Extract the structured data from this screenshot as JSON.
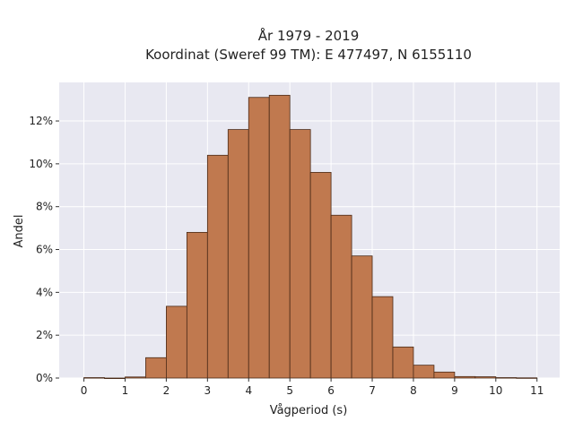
{
  "chart_data": {
    "type": "bar",
    "title": "År 1979 - 2019",
    "subtitle": "Koordinat (Sweref 99 TM): E 477497, N 6155110",
    "xlabel": "Vågperiod (s)",
    "ylabel": "Andel",
    "bin_width": 0.5,
    "bin_starts": [
      0,
      0.5,
      1,
      1.5,
      2,
      2.5,
      3,
      3.5,
      4,
      4.5,
      5,
      5.5,
      6,
      6.5,
      7,
      7.5,
      8,
      8.5,
      9,
      9.5,
      10,
      10.5
    ],
    "values": [
      0.02,
      0,
      0.05,
      0.95,
      3.35,
      6.8,
      10.4,
      11.6,
      13.1,
      13.2,
      11.6,
      9.6,
      7.6,
      5.7,
      3.8,
      1.45,
      0.6,
      0.28,
      0.07,
      0.06,
      0.02,
      0.01
    ],
    "x_ticks": [
      0,
      1,
      2,
      3,
      4,
      5,
      6,
      7,
      8,
      9,
      10,
      11
    ],
    "x_tick_labels": [
      "0",
      "1",
      "2",
      "3",
      "4",
      "5",
      "6",
      "7",
      "8",
      "9",
      "10",
      "11"
    ],
    "y_ticks": [
      0,
      2,
      4,
      6,
      8,
      10,
      12
    ],
    "y_tick_labels": [
      "0%",
      "2%",
      "4%",
      "6%",
      "8%",
      "10%",
      "12%"
    ],
    "xlim": [
      -0.6,
      11.55
    ],
    "ylim": [
      0,
      13.8
    ],
    "grid": true,
    "colors": {
      "bar_fill": "#c0794f",
      "bar_edge": "#4a2a17",
      "plot_background": "#e8e8f1",
      "grid": "#ffffff"
    }
  }
}
